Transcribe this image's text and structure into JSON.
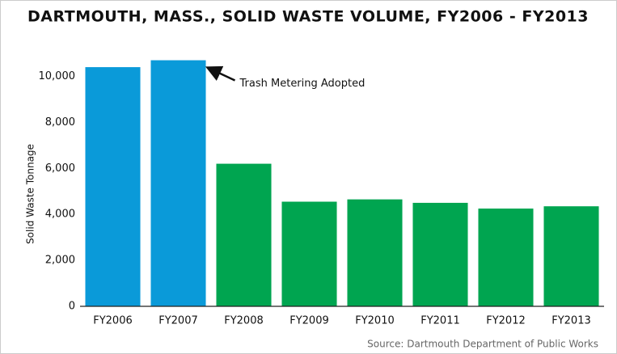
{
  "chart_data": {
    "type": "bar",
    "title": "DARTMOUTH, MASS., SOLID WASTE VOLUME, FY2006 - FY2013",
    "y_label": "Solid Waste Tonnage",
    "annotation": "Trash Metering Adopted",
    "source": "Source: Dartmouth Department of Public Works",
    "categories": [
      "FY2006",
      "FY2007",
      "FY2008",
      "FY2009",
      "FY2010",
      "FY2011",
      "FY2012",
      "FY2013"
    ],
    "values": [
      10400,
      10700,
      6200,
      4550,
      4650,
      4500,
      4250,
      4350
    ],
    "colors": [
      "#0a9ad9",
      "#0a9ad9",
      "#00a550",
      "#00a550",
      "#00a550",
      "#00a550",
      "#00a550",
      "#00a550"
    ],
    "ylim": [
      0,
      11000
    ],
    "yticks": [
      0,
      {
        "value": 2000,
        "label": "2,000"
      },
      {
        "value": 4000,
        "label": "4,000"
      },
      {
        "value": 6000,
        "label": "6,000"
      },
      {
        "value": 8000,
        "label": "8,000"
      },
      {
        "value": 10000,
        "label": "10,000"
      }
    ],
    "grid": false
  }
}
